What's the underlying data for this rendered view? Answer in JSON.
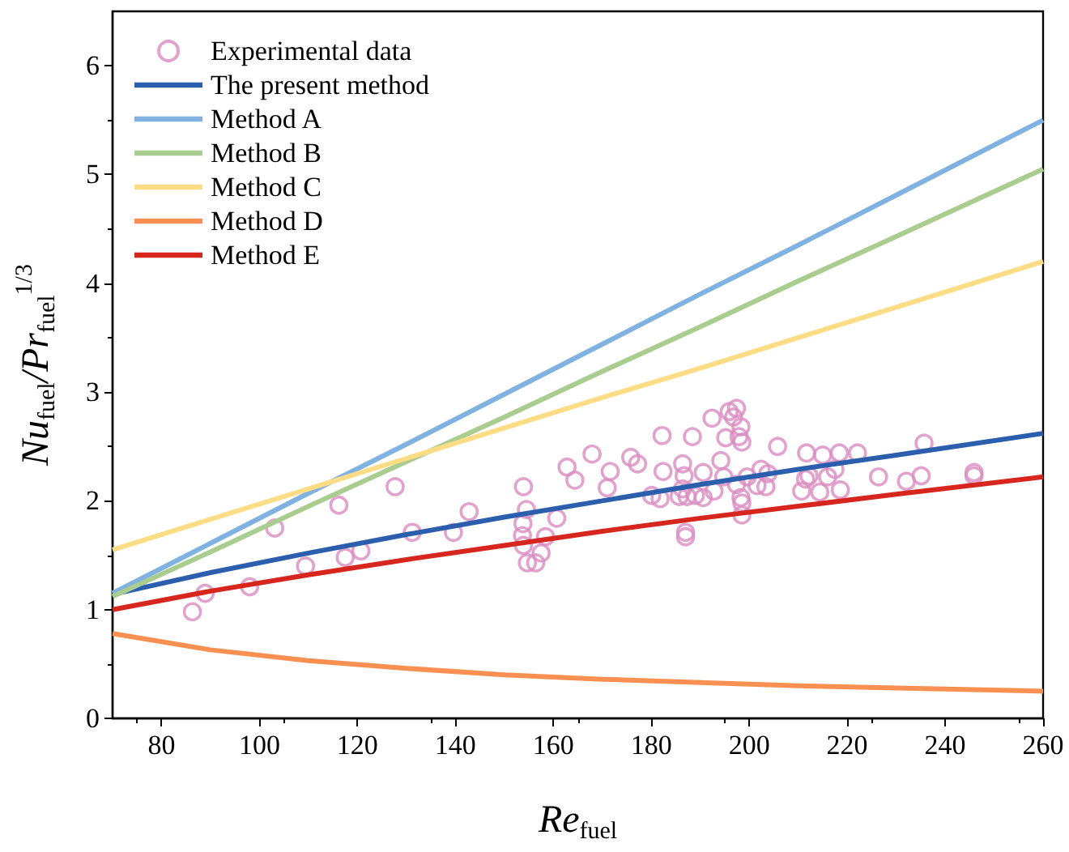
{
  "chart_data": {
    "type": "scatter",
    "xlabel": "Re$_{fuel}$",
    "ylabel": "Nu$_{fuel}$/Pr$_{fuel}$$^{1/3}$",
    "xlim": [
      70,
      260
    ],
    "xticks": [
      80,
      100,
      120,
      140,
      160,
      180,
      200,
      220,
      240,
      260
    ],
    "ylim": [
      0,
      6.5
    ],
    "yticks": [
      0,
      1,
      2,
      3,
      4,
      5,
      6
    ],
    "grid": false,
    "legend": "top left",
    "series": [
      {
        "name": "Experimental data",
        "marker": "circle",
        "color": "#d98cc0",
        "x": [
          86.3,
          88.9,
          98.0,
          103.1,
          109.4,
          116.2,
          117.5,
          120.7,
          127.7,
          131.2,
          139.6,
          142.8,
          153.9,
          154.5,
          153.8,
          153.7,
          153.9,
          154.7,
          156.4,
          157.5,
          158.4,
          160.7,
          162.8,
          164.4,
          167.9,
          171.6,
          171.0,
          175.8,
          177.2,
          182.2,
          182.4,
          180.1,
          181.8,
          186.4,
          186.7,
          186.4,
          185.7,
          187.3,
          189.0,
          190.6,
          187.0,
          187.0,
          188.4,
          190.6,
          192.8,
          194.2,
          192.4,
          194.8,
          195.9,
          197.4,
          196.8,
          198.3,
          197.9,
          195.2,
          198.5,
          197.4,
          198.3,
          198.5,
          198.5,
          199.6,
          201.6,
          202.4,
          203.8,
          203.4,
          205.8,
          210.7,
          211.5,
          211.7,
          212.2,
          214.4,
          215.0,
          216.0,
          217.5,
          218.4,
          218.6,
          222.1,
          226.4,
          232.1,
          235.1,
          235.7,
          245.9,
          245.9
        ],
        "values": [
          0.98,
          1.15,
          1.21,
          1.75,
          1.4,
          1.96,
          1.48,
          1.54,
          2.13,
          1.71,
          1.71,
          1.9,
          2.13,
          1.92,
          1.79,
          1.68,
          1.59,
          1.43,
          1.43,
          1.52,
          1.67,
          1.84,
          2.31,
          2.19,
          2.43,
          2.27,
          2.12,
          2.4,
          2.34,
          2.6,
          2.27,
          2.05,
          2.02,
          2.34,
          2.23,
          2.11,
          2.04,
          2.04,
          2.05,
          2.03,
          1.71,
          1.67,
          2.59,
          2.26,
          2.09,
          2.37,
          2.76,
          2.22,
          2.82,
          2.85,
          2.77,
          2.68,
          2.59,
          2.58,
          2.54,
          2.15,
          2.03,
          1.98,
          1.87,
          2.22,
          2.14,
          2.29,
          2.25,
          2.13,
          2.5,
          2.09,
          2.2,
          2.44,
          2.23,
          2.08,
          2.42,
          2.22,
          2.29,
          2.44,
          2.1,
          2.44,
          2.22,
          2.18,
          2.23,
          2.53,
          2.26,
          2.23
        ]
      },
      {
        "name": "The present method",
        "type": "line",
        "color": "#2b5fae",
        "x": [
          70,
          90,
          110,
          130,
          150,
          170,
          190,
          210,
          230,
          260
        ],
        "values": [
          1.14,
          1.34,
          1.52,
          1.69,
          1.85,
          2.0,
          2.15,
          2.29,
          2.42,
          2.62
        ]
      },
      {
        "name": "Method A",
        "type": "line",
        "color": "#7fb2e0",
        "x": [
          70,
          90,
          110,
          130,
          150,
          170,
          190,
          210,
          230,
          260
        ],
        "values": [
          1.15,
          1.61,
          2.07,
          2.52,
          2.98,
          3.44,
          3.9,
          4.35,
          4.81,
          5.5
        ]
      },
      {
        "name": "Method B",
        "type": "line",
        "color": "#a9cc8f",
        "x": [
          70,
          90,
          110,
          130,
          150,
          170,
          190,
          210,
          230,
          260
        ],
        "values": [
          1.12,
          1.53,
          1.95,
          2.36,
          2.77,
          3.19,
          3.6,
          4.02,
          4.43,
          5.05
        ]
      },
      {
        "name": "Method C",
        "type": "line",
        "color": "#fddc86",
        "x": [
          70,
          90,
          110,
          130,
          150,
          170,
          190,
          210,
          230,
          260
        ],
        "values": [
          1.55,
          1.83,
          2.11,
          2.39,
          2.67,
          2.95,
          3.22,
          3.5,
          3.78,
          4.2
        ]
      },
      {
        "name": "Method D",
        "type": "line",
        "color": "#f99052",
        "x": [
          70,
          90,
          110,
          130,
          150,
          170,
          190,
          210,
          230,
          260
        ],
        "values": [
          0.78,
          0.63,
          0.53,
          0.46,
          0.4,
          0.36,
          0.33,
          0.3,
          0.28,
          0.25
        ]
      },
      {
        "name": "Method E",
        "type": "line",
        "color": "#d7261e",
        "x": [
          70,
          90,
          110,
          130,
          150,
          170,
          190,
          210,
          230,
          260
        ],
        "values": [
          1.0,
          1.17,
          1.32,
          1.46,
          1.59,
          1.72,
          1.84,
          1.95,
          2.06,
          2.22
        ]
      }
    ]
  }
}
